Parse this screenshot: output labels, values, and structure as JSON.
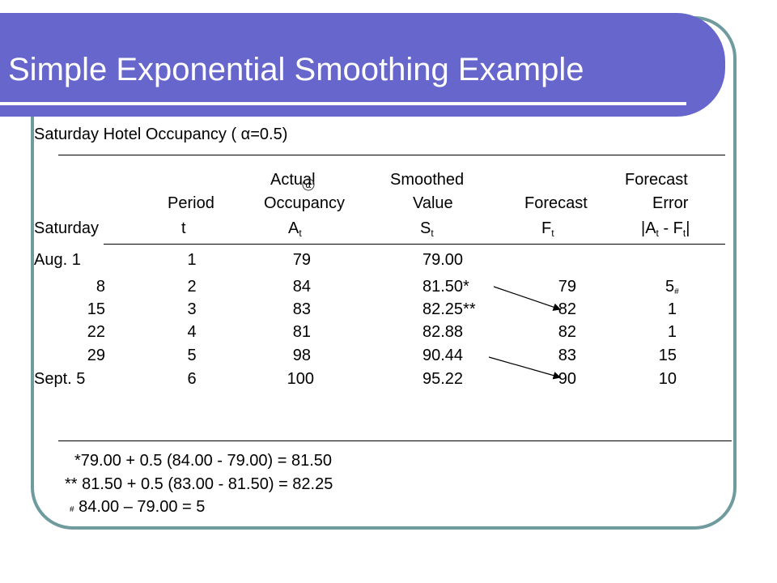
{
  "title": "Simple Exponential Smoothing Example",
  "subtitle": "Saturday Hotel Occupancy ( α=0.5)",
  "headers": {
    "actual_top": "Actual",
    "smoothed_top": "Smoothed",
    "forecast_error_top": "Forecast",
    "period": "Period",
    "occupancy": "Occupancy",
    "value": "Value",
    "forecast": "Forecast",
    "error": "Error",
    "saturday": "Saturday",
    "t": "t",
    "a": "A",
    "a_sub": "t",
    "s": "S",
    "s_sub": "t",
    "f": "F",
    "f_sub": "t",
    "err_a": "|A",
    "err_a_sub": "t",
    "err_mid": " - F",
    "err_f_sub": "t",
    "err_end": "|"
  },
  "rows": [
    {
      "date": "Aug.  1",
      "t": "1",
      "actual": "79",
      "smoothed": "79.00",
      "forecast": "",
      "error": ""
    },
    {
      "date": "8",
      "t": "2",
      "actual": "84",
      "smoothed": "81.50*",
      "forecast": "79",
      "error": "5"
    },
    {
      "date": "15",
      "t": "3",
      "actual": "83",
      "smoothed": "82.25**",
      "forecast": "82",
      "error": "1"
    },
    {
      "date": "22",
      "t": "4",
      "actual": "81",
      "smoothed": "82.88",
      "forecast": "82",
      "error": "1"
    },
    {
      "date": "29",
      "t": "5",
      "actual": "98",
      "smoothed": "90.44",
      "forecast": "83",
      "error": "15"
    },
    {
      "date": "Sept.  5",
      "t": "6",
      "actual": "100",
      "smoothed": "95.22",
      "forecast": "90",
      "error": "10"
    }
  ],
  "error_mark": "#",
  "footnotes": {
    "one": "*79.00 + 0.5 (84.00 - 79.00) = 81.50",
    "two": "** 81.50 + 0.5 (83.00 - 81.50) = 82.25",
    "three_mark": "#",
    "three": " 84.00 – 79.00 = 5"
  },
  "colors": {
    "title_bar": "#6666cc",
    "frame": "#6f9a9e",
    "title_text": "#ffffff"
  },
  "icons": {
    "header_glyph": "circled-alpha-glyph"
  }
}
